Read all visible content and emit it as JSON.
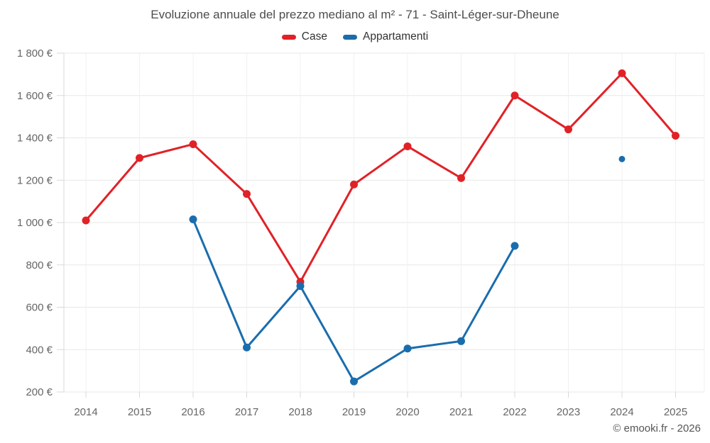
{
  "title": "Evoluzione annuale del prezzo mediano al m² - 71 - Saint-Léger-sur-Dheune",
  "copyright": "© emooki.fr - 2026",
  "legend": {
    "items": [
      {
        "label": "Case",
        "color": "#e02227"
      },
      {
        "label": "Appartamenti",
        "color": "#1a6dad"
      }
    ]
  },
  "chart_data": {
    "type": "line",
    "x": [
      "2014",
      "2015",
      "2016",
      "2017",
      "2018",
      "2019",
      "2020",
      "2021",
      "2022",
      "2023",
      "2024",
      "2025"
    ],
    "series": [
      {
        "name": "Case",
        "color": "#e02227",
        "values": [
          1010,
          1305,
          1370,
          1135,
          720,
          1180,
          1360,
          1210,
          1600,
          1440,
          1705,
          1410
        ]
      },
      {
        "name": "Appartamenti",
        "color": "#1a6dad",
        "values": [
          null,
          null,
          1015,
          410,
          700,
          250,
          405,
          440,
          890,
          null,
          1300,
          null
        ]
      }
    ],
    "title": "Evoluzione annuale del prezzo mediano al m² - 71 - Saint-Léger-sur-Dheune",
    "xlabel": "",
    "ylabel": "",
    "ylim": [
      200,
      1800
    ],
    "y_ticks": [
      {
        "value": 200,
        "label": "200 €"
      },
      {
        "value": 400,
        "label": "400 €"
      },
      {
        "value": 600,
        "label": "600 €"
      },
      {
        "value": 800,
        "label": "800 €"
      },
      {
        "value": 1000,
        "label": "1 000 €"
      },
      {
        "value": 1200,
        "label": "1 200 €"
      },
      {
        "value": 1400,
        "label": "1 400 €"
      },
      {
        "value": 1600,
        "label": "1 600 €"
      },
      {
        "value": 1800,
        "label": "1 800 €"
      }
    ],
    "grid": true,
    "legend_position": "top"
  }
}
